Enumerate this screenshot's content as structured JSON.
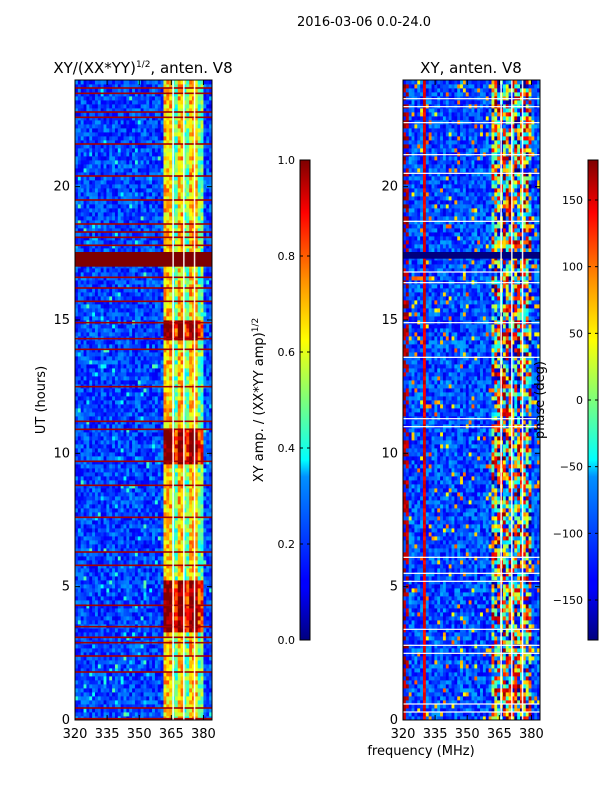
{
  "figure": {
    "suptitle": "2016-03-06 0.0-24.0",
    "shared_xlabel": "frequency (MHz)"
  },
  "chart_data": [
    {
      "type": "heatmap",
      "title_main": "XY/(XX*YY)",
      "title_sup": "1/2",
      "title_rest": ", anten. V8",
      "xlabel": "frequency (MHz)",
      "ylabel": "UT (hours)",
      "xlim": [
        320,
        384
      ],
      "ylim": [
        0,
        24
      ],
      "xticks": [
        320,
        335,
        350,
        365,
        380
      ],
      "yticks": [
        0,
        5,
        10,
        15,
        20
      ],
      "colorbar": {
        "label_main": "XY amp. / (XX*YY amp)",
        "label_sup": "1/2",
        "range": [
          0.0,
          1.0
        ],
        "ticks": [
          0.0,
          0.2,
          0.4,
          0.6,
          0.8,
          1.0
        ],
        "tick_labels": [
          "0.0",
          "0.2",
          "0.4",
          "0.6",
          "0.8",
          "1.0"
        ]
      },
      "features": {
        "flagged_band_hours": [
          17.0,
          17.55
        ],
        "rfi_band_mhz": [
          362,
          380
        ],
        "flagged_rows_hours": [
          0.05,
          0.45,
          1.8,
          2.4,
          2.9,
          3.1,
          3.5,
          4.3,
          5.8,
          6.3,
          7.6,
          8.8,
          9.7,
          10.9,
          11.2,
          12.5,
          13.9,
          14.3,
          14.9,
          15.7,
          16.2,
          16.6,
          17.8,
          18.1,
          18.3,
          18.6,
          19.5,
          20.4,
          21.6,
          22.6,
          22.8,
          23.5,
          23.7
        ]
      }
    },
    {
      "type": "heatmap",
      "title": "XY, anten. V8",
      "xlabel": "frequency (MHz)",
      "ylabel": "",
      "xlim": [
        320,
        384
      ],
      "ylim": [
        0,
        24
      ],
      "xticks": [
        320,
        335,
        350,
        365,
        380
      ],
      "yticks": [
        0,
        5,
        10,
        15,
        20
      ],
      "colorbar": {
        "label": "phase (deg)",
        "range": [
          -180,
          180
        ],
        "ticks": [
          -150,
          -100,
          -50,
          0,
          50,
          100,
          150
        ],
        "tick_labels": [
          "−150",
          "−100",
          "−50",
          "0",
          "50",
          "100",
          "150"
        ]
      },
      "features": {
        "gap_band_hours": [
          17.3,
          17.55
        ],
        "rfi_band_mhz": [
          362,
          380
        ],
        "white_rows_hours": [
          0.3,
          0.6,
          2.5,
          2.8,
          3.4,
          5.2,
          5.5,
          6.1,
          11.0,
          11.3,
          13.6,
          14.9,
          16.4,
          16.8,
          18.7,
          20.5,
          21.2,
          22.4,
          23.0,
          23.3
        ]
      }
    }
  ]
}
